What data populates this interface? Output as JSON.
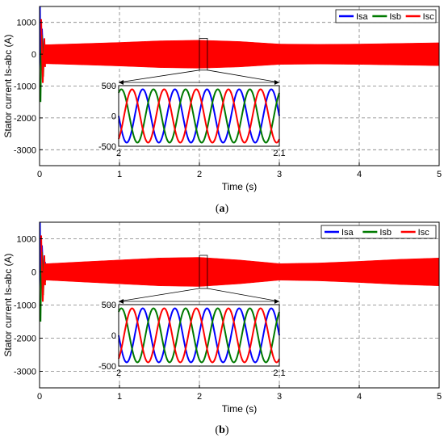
{
  "colors": {
    "Isa": "#0000ff",
    "Isb": "#007a00",
    "Isc": "#ff0000"
  },
  "panels": [
    {
      "caption_letter": "a",
      "chart_data": {
        "type": "line",
        "xlabel": "Time (s)",
        "ylabel": "Stator current Is-abc (A)",
        "xlim": [
          0,
          5
        ],
        "ylim": [
          -3500,
          1500
        ],
        "xticks": [
          "0",
          "1",
          "2",
          "3",
          "4",
          "5"
        ],
        "yticks": [
          "1000",
          "0",
          "-1000",
          "-2000",
          "-3000"
        ],
        "ytick_values": [
          1000,
          0,
          -1000,
          -2000,
          -3000
        ],
        "grid": true,
        "legend_position": "top-right",
        "series": [
          {
            "name": "Isa"
          },
          {
            "name": "Isb"
          },
          {
            "name": "Isc"
          }
        ],
        "amplitude_envelope": {
          "t": [
            0.1,
            0.5,
            1.0,
            1.5,
            2.0,
            2.5,
            3.0,
            3.5,
            4.0,
            4.5,
            5.0
          ],
          "amp": [
            300,
            330,
            370,
            420,
            440,
            400,
            320,
            310,
            320,
            340,
            360
          ]
        },
        "startup_transient": {
          "peak_positive": 1500,
          "peak_negative": -1500
        },
        "inset": {
          "xlim": [
            2,
            2.1
          ],
          "ylim": [
            -500,
            500
          ],
          "xticks": [
            "2",
            "2.1"
          ],
          "yticks": [
            "500",
            "0",
            "-500"
          ],
          "ytick_values": [
            500,
            0,
            -500
          ],
          "amplitude": 440,
          "cycles": 5
        }
      }
    },
    {
      "caption_letter": "b",
      "chart_data": {
        "type": "line",
        "xlabel": "Time (s)",
        "ylabel": "Stator current Is-abc (A)",
        "xlim": [
          0,
          5
        ],
        "ylim": [
          -3500,
          1500
        ],
        "xticks": [
          "0",
          "1",
          "2",
          "3",
          "4",
          "5"
        ],
        "yticks": [
          "1000",
          "0",
          "-1000",
          "-2000",
          "-3000"
        ],
        "ytick_values": [
          1000,
          0,
          -1000,
          -2000,
          -3000
        ],
        "grid": true,
        "legend_position": "top-right",
        "series": [
          {
            "name": "Isa"
          },
          {
            "name": "Isb"
          },
          {
            "name": "Isc"
          }
        ],
        "amplitude_envelope": {
          "t": [
            0.1,
            0.5,
            1.0,
            1.5,
            2.0,
            2.5,
            3.0,
            3.5,
            4.0,
            4.5,
            5.0
          ],
          "amp": [
            250,
            300,
            360,
            420,
            440,
            360,
            250,
            270,
            320,
            380,
            420
          ]
        },
        "startup_transient": {
          "peak_positive": 1500,
          "peak_negative": -1500
        },
        "inset": {
          "xlim": [
            2,
            2.1
          ],
          "ylim": [
            -500,
            500
          ],
          "xticks": [
            "2",
            "2.1"
          ],
          "yticks": [
            "500",
            "0",
            "-500"
          ],
          "ytick_values": [
            500,
            0,
            -500
          ],
          "amplitude": 440,
          "cycles": 5
        }
      }
    }
  ]
}
